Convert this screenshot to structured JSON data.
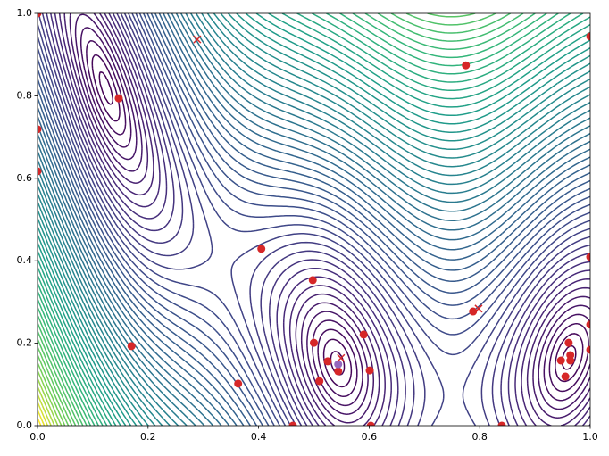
{
  "chart_data": {
    "type": "scatter",
    "xlim": [
      0,
      1
    ],
    "ylim": [
      0,
      1
    ],
    "xticks": [
      {
        "value": 0,
        "label": "0.0"
      },
      0.2,
      0.4,
      0.6,
      0.8,
      {
        "value": 1,
        "label": "1.0"
      }
    ],
    "yticks": [
      {
        "value": 0,
        "label": "0.0"
      },
      0.2,
      0.4,
      0.6,
      0.8,
      {
        "value": 1,
        "label": "1.0"
      }
    ],
    "series": [
      {
        "marker": "o",
        "color": "#d62728",
        "x": [
          0,
          0.147,
          0,
          0,
          0.775,
          1.0,
          0.405,
          0.498,
          0.17,
          0.5,
          0.59,
          0.525,
          0.544,
          0.51,
          0.601,
          0.363,
          0.462,
          0.603,
          0.84,
          0.788,
          1.0,
          1.0,
          1.0,
          0.961,
          0.947,
          0.964,
          0.964,
          0.955
        ],
        "values": [
          1.0,
          0.794,
          0.719,
          0.617,
          0.874,
          0.944,
          0.429,
          0.353,
          0.193,
          0.201,
          0.221,
          0.156,
          0.132,
          0.108,
          0.134,
          0.102,
          0.0,
          0.0,
          0.0,
          0.277,
          0.409,
          0.245,
          0.184,
          0.201,
          0.158,
          0.171,
          0.158,
          0.119
        ]
      },
      {
        "marker": "o",
        "color": "#9467bd",
        "x": [
          0.544
        ],
        "values": [
          0.149
        ]
      },
      {
        "marker": "x",
        "color": "#d62728",
        "x": [
          0.289,
          0.549,
          0.798
        ],
        "values": [
          0.937,
          0.164,
          0.284
        ]
      }
    ]
  }
}
